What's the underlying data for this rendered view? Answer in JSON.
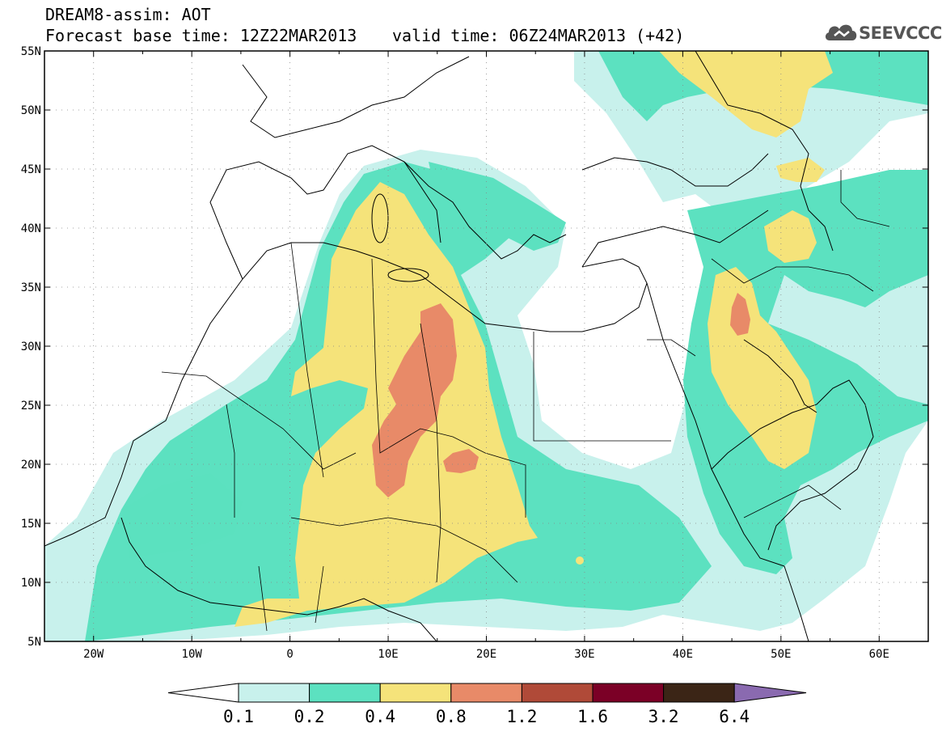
{
  "header": {
    "title": "DREAM8-assim: AOT",
    "base_time": "Forecast base time: 12Z22MAR2013",
    "valid_time": "valid time: 06Z24MAR2013 (+42)"
  },
  "logo": {
    "icon": "cloud-icon",
    "text": "SEEVCCC"
  },
  "map": {
    "lon_range": [
      -25,
      65
    ],
    "lat_range": [
      5,
      55
    ],
    "lon_ticks": [
      "20W",
      "10W",
      "0",
      "10E",
      "20E",
      "30E",
      "40E",
      "50E",
      "60E"
    ],
    "lat_ticks": [
      "55N",
      "50N",
      "45N",
      "40N",
      "35N",
      "30N",
      "25N",
      "20N",
      "15N",
      "10N",
      "5N"
    ]
  },
  "colorbar": {
    "levels": [
      "0.1",
      "0.2",
      "0.4",
      "0.8",
      "1.2",
      "1.6",
      "3.2",
      "6.4"
    ],
    "colors": [
      "#c8f1ec",
      "#5ce1c0",
      "#f5e37a",
      "#e88a68",
      "#b04a38",
      "#7b0026",
      "#3b2516"
    ],
    "under_color": "#ffffff",
    "over_color": "#8a6ab0"
  }
}
